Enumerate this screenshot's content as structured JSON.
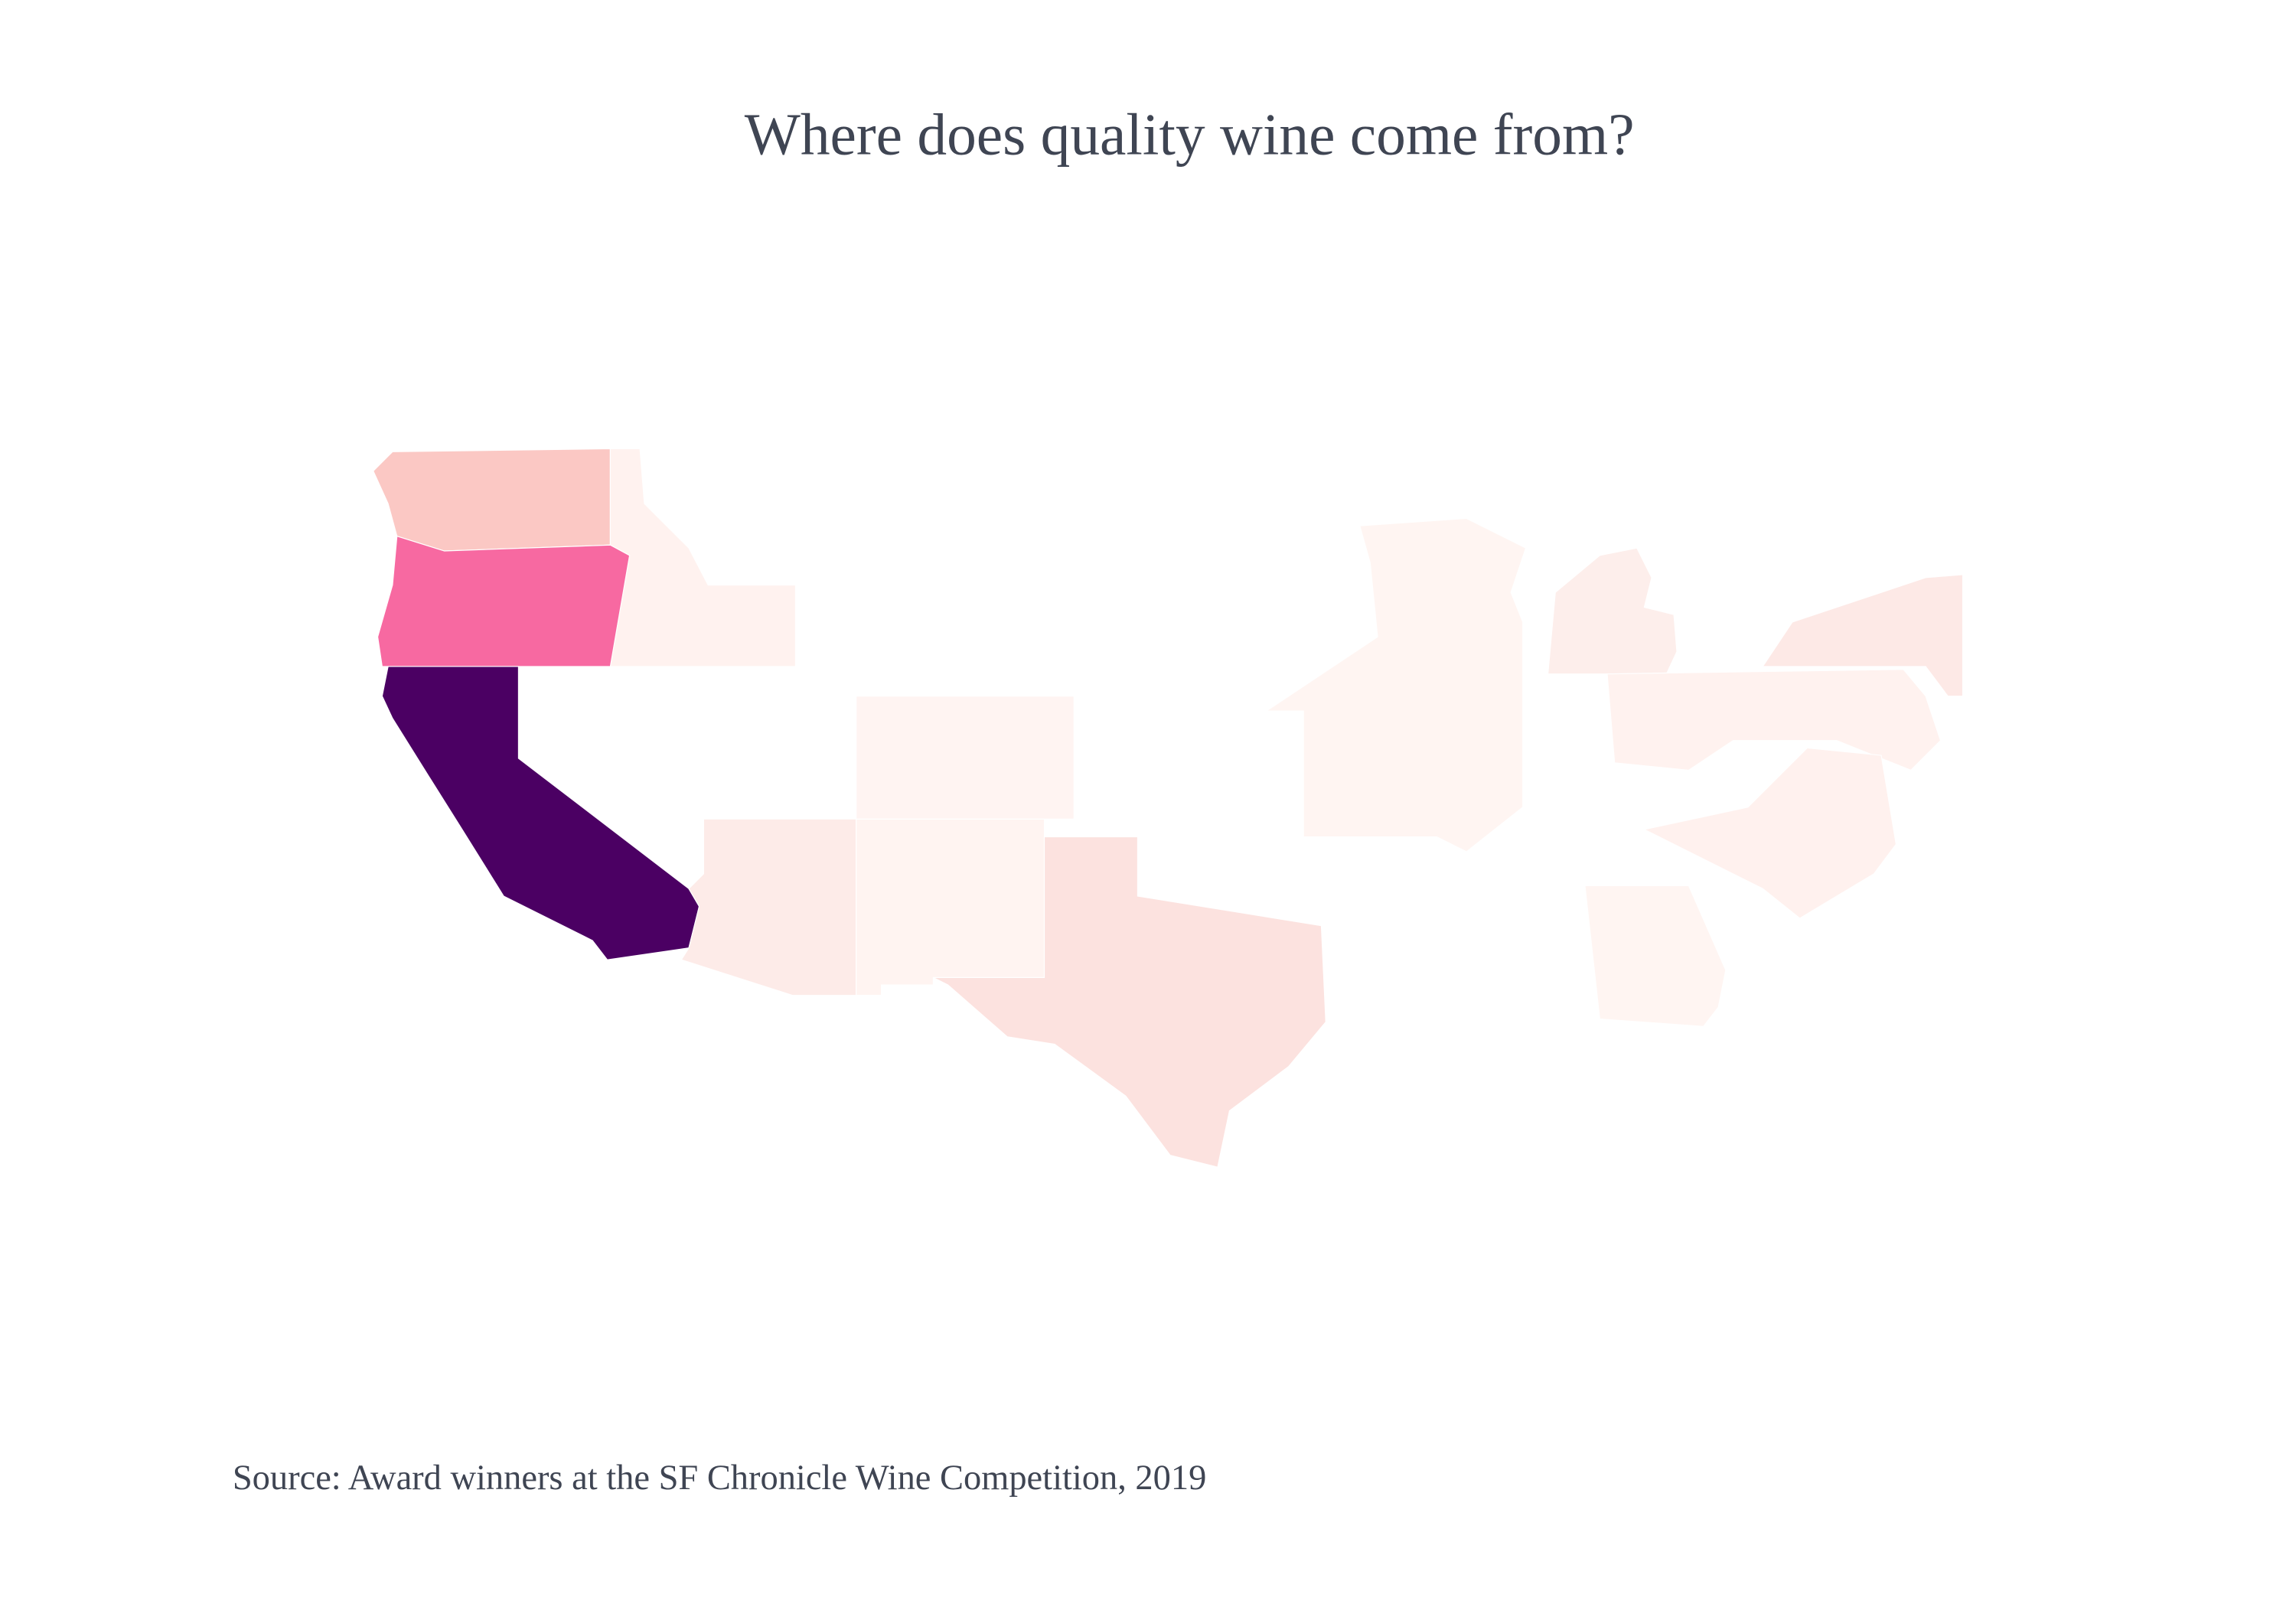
{
  "title": "Where does quality wine come from?",
  "source": "Source: Award winners at the SF Chronicle Wine Competition, 2019",
  "map": {
    "regions": [
      {
        "color": "#fbc8c4"
      },
      {
        "color": "#fff2ef"
      },
      {
        "color": "#f769a1"
      },
      {
        "color": "#4b0063"
      },
      {
        "color": "#fdebe8"
      },
      {
        "color": "#fff4f1"
      },
      {
        "color": "#fff4f2"
      },
      {
        "color": "#fce2df"
      },
      {
        "color": "#fff5f2"
      },
      {
        "color": "#fdeeeb"
      },
      {
        "color": "#fde9e6"
      },
      {
        "color": "#fff2ef"
      },
      {
        "color": "#fff1ee"
      },
      {
        "color": "#fff5f2"
      }
    ]
  }
}
